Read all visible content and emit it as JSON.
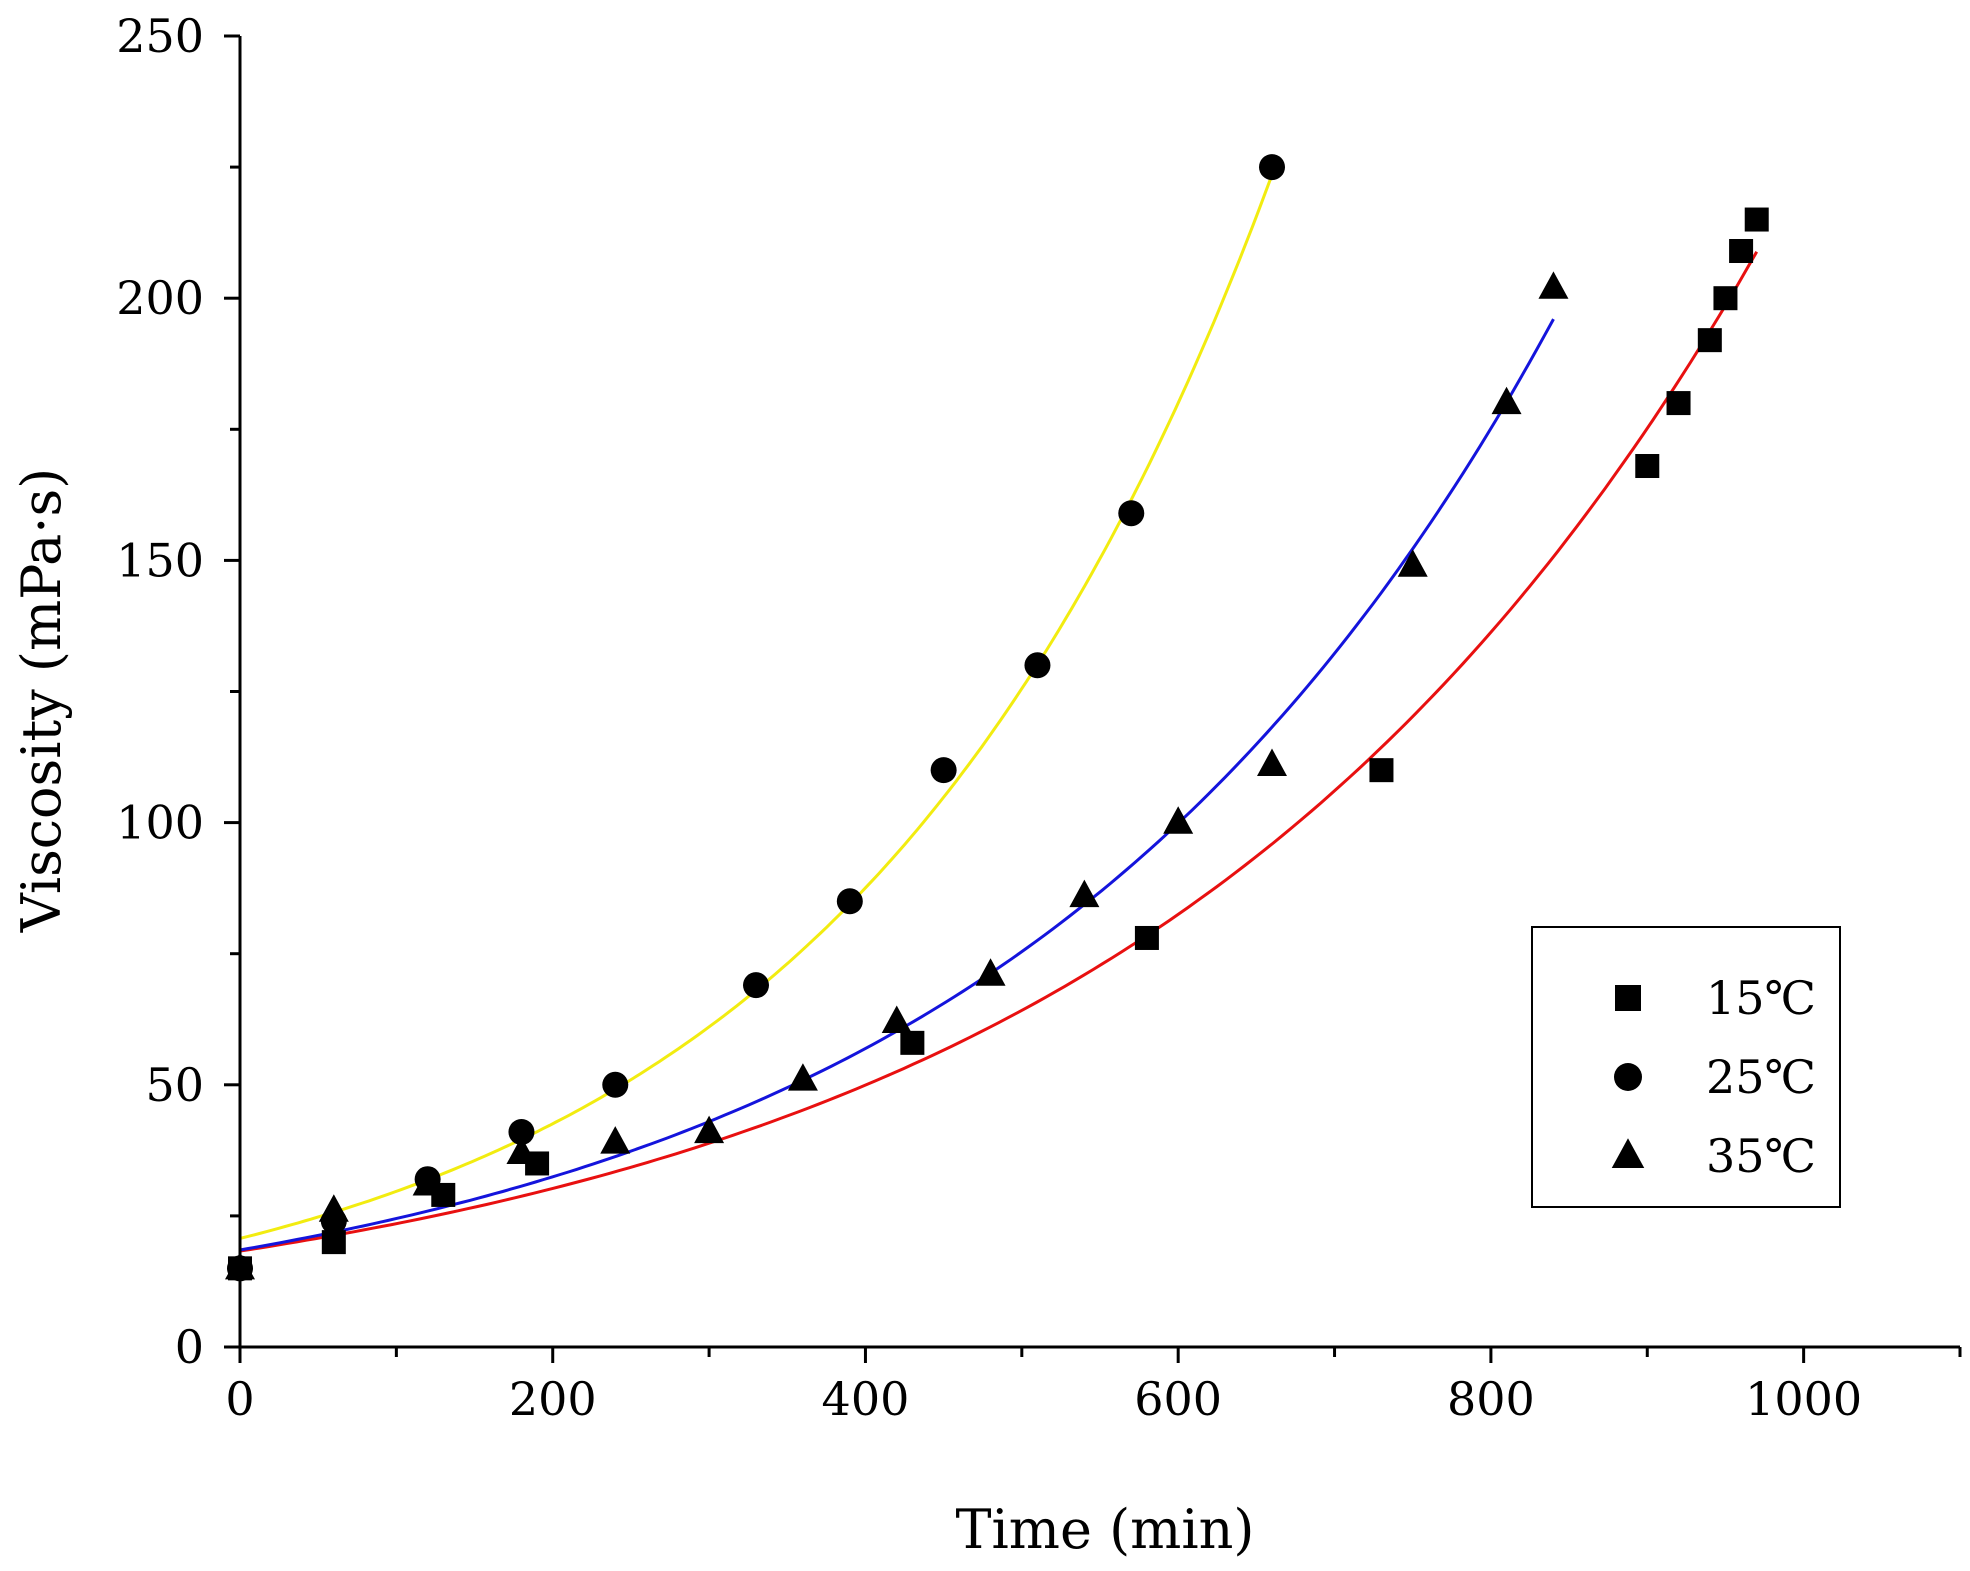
{
  "chart_data": {
    "type": "scatter",
    "title": "",
    "xlabel": "Time (min)",
    "ylabel": "Viscosity (mPa·s)",
    "xlim": [
      0,
      1100
    ],
    "ylim": [
      0,
      250
    ],
    "xticks": [
      0,
      200,
      400,
      600,
      800,
      1000
    ],
    "yticks": [
      0,
      50,
      100,
      150,
      200,
      250
    ],
    "x_tick_labels": [
      "0",
      "200",
      "400",
      "600",
      "800",
      "1000"
    ],
    "y_tick_labels": [
      "0",
      "50",
      "100",
      "150",
      "200",
      "250"
    ],
    "grid": false,
    "legend_position": "lower-right",
    "series": [
      {
        "name": "15℃",
        "marker": "square",
        "x": [
          0,
          60,
          130,
          190,
          430,
          580,
          730,
          900,
          920,
          940,
          950,
          960,
          970
        ],
        "y": [
          15,
          20,
          29,
          35,
          58,
          78,
          110,
          168,
          180,
          192,
          200,
          209,
          215
        ],
        "fit": {
          "color": "#e81010",
          "a": 18.3,
          "b": 0.00251,
          "x_range": [
            0,
            970
          ]
        }
      },
      {
        "name": "25℃",
        "marker": "circle",
        "x": [
          0,
          60,
          120,
          180,
          240,
          330,
          390,
          450,
          510,
          570,
          660
        ],
        "y": [
          15,
          24,
          32,
          41,
          50,
          69,
          85,
          110,
          130,
          159,
          225
        ],
        "fit": {
          "color": "#f2ec10",
          "a": 20.7,
          "b": 0.003605,
          "x_range": [
            0,
            660
          ]
        }
      },
      {
        "name": "35℃",
        "marker": "triangle",
        "x": [
          0,
          60,
          120,
          180,
          240,
          300,
          360,
          420,
          480,
          540,
          600,
          660,
          750,
          810,
          840
        ],
        "y": [
          15,
          26,
          31,
          37,
          39,
          41,
          51,
          62,
          71,
          86,
          100,
          111,
          149,
          180,
          202
        ],
        "fit": {
          "color": "#1414dc",
          "a": 18.5,
          "b": 0.00281,
          "x_range": [
            0,
            840
          ]
        }
      }
    ]
  }
}
